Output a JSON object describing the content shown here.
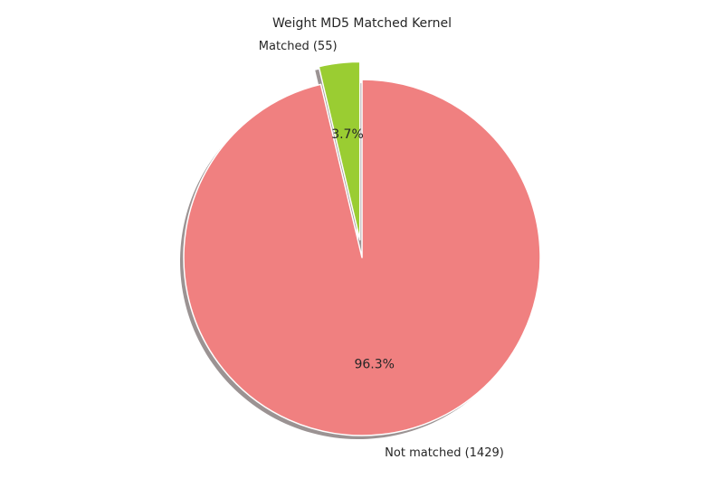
{
  "chart_data": {
    "type": "pie",
    "title": "Weight MD5 Matched Kernel",
    "slices": [
      {
        "label": "Matched (55)",
        "value": 55,
        "percent_label": "3.7%",
        "color": "#9acd32",
        "exploded": true
      },
      {
        "label": "Not matched (1429)",
        "value": 1429,
        "percent_label": "96.3%",
        "color": "#f08080",
        "exploded": false
      }
    ],
    "start_angle_deg": 90,
    "direction": "counterclockwise",
    "shadow": true,
    "edge_color": "#ffffff"
  }
}
